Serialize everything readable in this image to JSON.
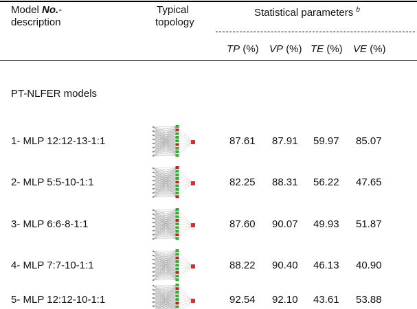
{
  "header": {
    "model": {
      "text": "Model",
      "emphasis": "No.",
      "suffix": "-",
      "line2": "description"
    },
    "topology": [
      "Typical",
      "topology"
    ],
    "stats": {
      "text": "Statistical parameters",
      "note": "b"
    },
    "columns": [
      {
        "abbr": "TP",
        "unit": "(%)"
      },
      {
        "abbr": "VP",
        "unit": "(%)"
      },
      {
        "abbr": "TE",
        "unit": "(%)"
      },
      {
        "abbr": "VE",
        "unit": "(%)"
      }
    ]
  },
  "section": "PT-NLFER models",
  "rows": [
    {
      "model": "1- MLP 12:12-13-1:1",
      "values": [
        "87.61",
        "87.91",
        "59.97",
        "85.07"
      ]
    },
    {
      "model": "2- MLP 5:5-10-1:1",
      "values": [
        "82.25",
        "88.31",
        "56.22",
        "47.65"
      ]
    },
    {
      "model": "3- MLP 6:6-8-1:1",
      "values": [
        "87.60",
        "90.07",
        "49.93",
        "51.87"
      ]
    },
    {
      "model": "4- MLP 7:7-10-1:1",
      "values": [
        "88.22",
        "90.40",
        "46.13",
        "40.90"
      ]
    },
    {
      "model": "5- MLP 12:12-10-1:1",
      "values": [
        "92.54",
        "92.10",
        "43.61",
        "53.88"
      ]
    }
  ]
}
